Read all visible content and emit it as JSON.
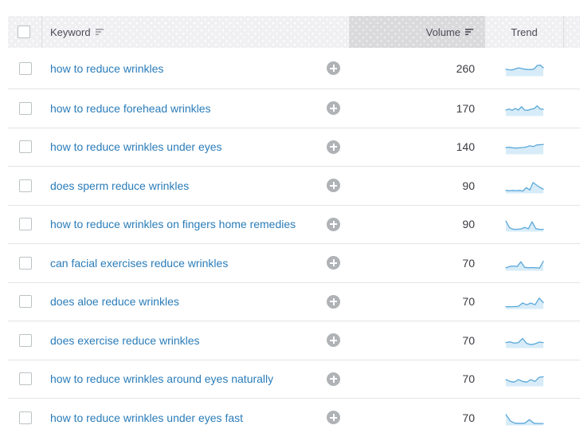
{
  "colors": {
    "link_blue": "#2a7cb9",
    "spark_line": "#5ba8d9",
    "spark_fill": "#d7ecf8",
    "header_bg": "#f0f0f2",
    "sorted_header_bg": "#dadadc",
    "plus_gray": "#afb3b6",
    "row_divider": "#e4e4e6"
  },
  "table": {
    "header": {
      "keyword_label": "Keyword",
      "volume_label": "Volume",
      "trend_label": "Trend",
      "keyword_sort_icon": "sort-icon",
      "volume_sort_icon": "sort-icon"
    },
    "rows": [
      {
        "keyword": "how to reduce wrinkles",
        "volume": "260",
        "trend": [
          0.5,
          0.45,
          0.44,
          0.52,
          0.6,
          0.55,
          0.5,
          0.47,
          0.47,
          0.5,
          0.78,
          0.82,
          0.6
        ]
      },
      {
        "keyword": "how to reduce forehead wrinkles",
        "volume": "170",
        "trend": [
          0.42,
          0.5,
          0.4,
          0.55,
          0.42,
          0.68,
          0.42,
          0.4,
          0.48,
          0.52,
          0.75,
          0.5,
          0.48
        ]
      },
      {
        "keyword": "how to reduce wrinkles under eyes",
        "volume": "140",
        "trend": [
          0.48,
          0.5,
          0.46,
          0.44,
          0.46,
          0.48,
          0.52,
          0.62,
          0.55,
          0.68,
          0.7,
          0.72
        ]
      },
      {
        "keyword": "does sperm reduce wrinkles",
        "volume": "90",
        "trend": [
          0.18,
          0.16,
          0.18,
          0.16,
          0.18,
          0.14,
          0.4,
          0.22,
          0.8,
          0.6,
          0.42,
          0.28
        ]
      },
      {
        "keyword": "how to reduce wrinkles on fingers home remedies",
        "volume": "90",
        "trend": [
          0.78,
          0.25,
          0.14,
          0.14,
          0.16,
          0.28,
          0.18,
          0.72,
          0.18,
          0.13,
          0.13
        ]
      },
      {
        "keyword": "can facial exercises reduce wrinkles",
        "volume": "70",
        "trend": [
          0.18,
          0.28,
          0.32,
          0.28,
          0.65,
          0.22,
          0.18,
          0.2,
          0.18,
          0.16,
          0.7
        ]
      },
      {
        "keyword": "does aloe reduce wrinkles",
        "volume": "70",
        "trend": [
          0.13,
          0.13,
          0.14,
          0.16,
          0.42,
          0.28,
          0.42,
          0.28,
          0.8,
          0.45
        ]
      },
      {
        "keyword": "does exercise reduce wrinkles",
        "volume": "70",
        "trend": [
          0.38,
          0.44,
          0.34,
          0.38,
          0.7,
          0.32,
          0.22,
          0.28,
          0.42,
          0.38
        ]
      },
      {
        "keyword": "how to reduce wrinkles around eyes naturally",
        "volume": "70",
        "trend": [
          0.48,
          0.34,
          0.28,
          0.48,
          0.34,
          0.28,
          0.48,
          0.34,
          0.66,
          0.7
        ]
      },
      {
        "keyword": "how to reduce wrinkles under eyes fast",
        "volume": "70",
        "trend": [
          0.8,
          0.28,
          0.12,
          0.12,
          0.12,
          0.4,
          0.12,
          0.1,
          0.1
        ]
      }
    ]
  }
}
